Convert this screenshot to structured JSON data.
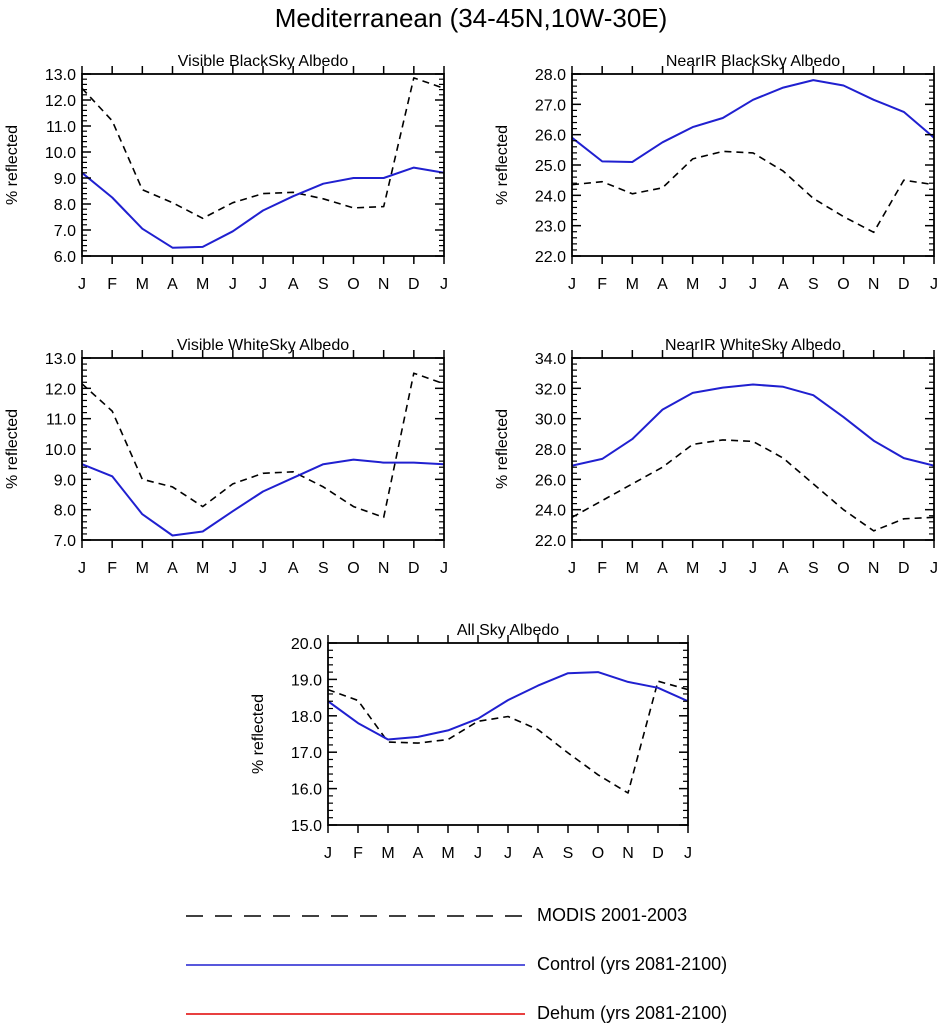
{
  "figure": {
    "title": "Mediterranean (34-45N,10W-30E)"
  },
  "months": [
    "J",
    "F",
    "M",
    "A",
    "M",
    "J",
    "J",
    "A",
    "S",
    "O",
    "N",
    "D",
    "J"
  ],
  "chart_data": [
    {
      "type": "line",
      "id": "vis-black",
      "title": "Visible BlackSky Albedo",
      "ylabel": "% reflected",
      "ylim": [
        6.0,
        13.0
      ],
      "yticks": [
        6.0,
        7.0,
        8.0,
        9.0,
        10.0,
        11.0,
        12.0,
        13.0
      ],
      "categories": [
        "J",
        "F",
        "M",
        "A",
        "M",
        "J",
        "J",
        "A",
        "S",
        "O",
        "N",
        "D",
        "J"
      ],
      "series": [
        {
          "name": "MODIS 2001-2003",
          "style": "dashed",
          "color": "#000000",
          "values": [
            12.45,
            11.2,
            8.55,
            8.05,
            7.45,
            8.05,
            8.4,
            8.45,
            8.2,
            7.85,
            7.9,
            12.85,
            12.45
          ]
        },
        {
          "name": "Control (yrs 2081-2100)",
          "style": "solid",
          "color": "#2020d0",
          "values": [
            9.2,
            8.25,
            7.05,
            6.32,
            6.35,
            6.95,
            7.75,
            8.3,
            8.78,
            9.0,
            9.0,
            9.4,
            9.2
          ]
        }
      ]
    },
    {
      "type": "line",
      "id": "nir-black",
      "title": "NearIR BlackSky Albedo",
      "ylabel": "% reflected",
      "ylim": [
        22.0,
        28.0
      ],
      "yticks": [
        22.0,
        23.0,
        24.0,
        25.0,
        26.0,
        27.0,
        28.0
      ],
      "categories": [
        "J",
        "F",
        "M",
        "A",
        "M",
        "J",
        "J",
        "A",
        "S",
        "O",
        "N",
        "D",
        "J"
      ],
      "series": [
        {
          "name": "MODIS 2001-2003",
          "style": "dashed",
          "color": "#000000",
          "values": [
            24.35,
            24.45,
            24.05,
            24.25,
            25.2,
            25.45,
            25.4,
            24.8,
            23.9,
            23.3,
            22.78,
            24.5,
            24.35
          ]
        },
        {
          "name": "Control (yrs 2081-2100)",
          "style": "solid",
          "color": "#2020d0",
          "values": [
            25.9,
            25.12,
            25.1,
            25.75,
            26.25,
            26.55,
            27.15,
            27.55,
            27.8,
            27.62,
            27.15,
            26.75,
            25.9
          ]
        }
      ]
    },
    {
      "type": "line",
      "id": "vis-white",
      "title": "Visible WhiteSky Albedo",
      "ylabel": "% reflected",
      "ylim": [
        7.0,
        13.0
      ],
      "yticks": [
        7.0,
        8.0,
        9.0,
        10.0,
        11.0,
        12.0,
        13.0
      ],
      "categories": [
        "J",
        "F",
        "M",
        "A",
        "M",
        "J",
        "J",
        "A",
        "S",
        "O",
        "N",
        "D",
        "J"
      ],
      "series": [
        {
          "name": "MODIS 2001-2003",
          "style": "dashed",
          "color": "#000000",
          "values": [
            12.15,
            11.25,
            9.0,
            8.75,
            8.1,
            8.85,
            9.2,
            9.25,
            8.75,
            8.1,
            7.75,
            12.5,
            12.15
          ]
        },
        {
          "name": "Control (yrs 2081-2100)",
          "style": "solid",
          "color": "#2020d0",
          "values": [
            9.5,
            9.1,
            7.85,
            7.15,
            7.28,
            7.95,
            8.6,
            9.05,
            9.5,
            9.65,
            9.55,
            9.55,
            9.5
          ]
        }
      ]
    },
    {
      "type": "line",
      "id": "nir-white",
      "title": "NearIR WhiteSky Albedo",
      "ylabel": "% reflected",
      "ylim": [
        22.0,
        34.0
      ],
      "yticks": [
        22.0,
        24.0,
        26.0,
        28.0,
        30.0,
        32.0,
        34.0
      ],
      "categories": [
        "J",
        "F",
        "M",
        "A",
        "M",
        "J",
        "J",
        "A",
        "S",
        "O",
        "N",
        "D",
        "J"
      ],
      "series": [
        {
          "name": "MODIS 2001-2003",
          "style": "dashed",
          "color": "#000000",
          "values": [
            23.5,
            24.6,
            25.7,
            26.8,
            28.3,
            28.6,
            28.5,
            27.4,
            25.7,
            24.0,
            22.6,
            23.4,
            23.5
          ]
        },
        {
          "name": "Control (yrs 2081-2100)",
          "style": "solid",
          "color": "#2020d0",
          "values": [
            26.9,
            27.35,
            28.65,
            30.6,
            31.7,
            32.05,
            32.25,
            32.1,
            31.55,
            30.1,
            28.55,
            27.4,
            26.9
          ]
        }
      ]
    },
    {
      "type": "line",
      "id": "all-sky",
      "title": "All Sky Albedo",
      "ylabel": "% reflected",
      "ylim": [
        15.0,
        20.0
      ],
      "yticks": [
        15.0,
        16.0,
        17.0,
        18.0,
        19.0,
        20.0
      ],
      "categories": [
        "J",
        "F",
        "M",
        "A",
        "M",
        "J",
        "J",
        "A",
        "S",
        "O",
        "N",
        "D",
        "J"
      ],
      "series": [
        {
          "name": "MODIS 2001-2003",
          "style": "dashed",
          "color": "#000000",
          "values": [
            18.72,
            18.42,
            17.28,
            17.25,
            17.35,
            17.85,
            17.98,
            17.62,
            16.98,
            16.38,
            15.88,
            18.95,
            18.72
          ]
        },
        {
          "name": "Control (yrs 2081-2100)",
          "style": "solid",
          "color": "#2020d0",
          "values": [
            18.4,
            17.8,
            17.35,
            17.42,
            17.6,
            17.92,
            18.43,
            18.83,
            19.17,
            19.2,
            18.93,
            18.77,
            18.4
          ]
        }
      ]
    }
  ],
  "legend": {
    "placement": "bottom-center",
    "items": [
      {
        "label": "MODIS 2001-2003",
        "style": "dashed",
        "color": "#000000"
      },
      {
        "label": "Control (yrs 2081-2100)",
        "style": "solid",
        "color": "#2020d0"
      },
      {
        "label": "Dehum (yrs 2081-2100)",
        "style": "solid",
        "color": "#e00000"
      }
    ]
  }
}
